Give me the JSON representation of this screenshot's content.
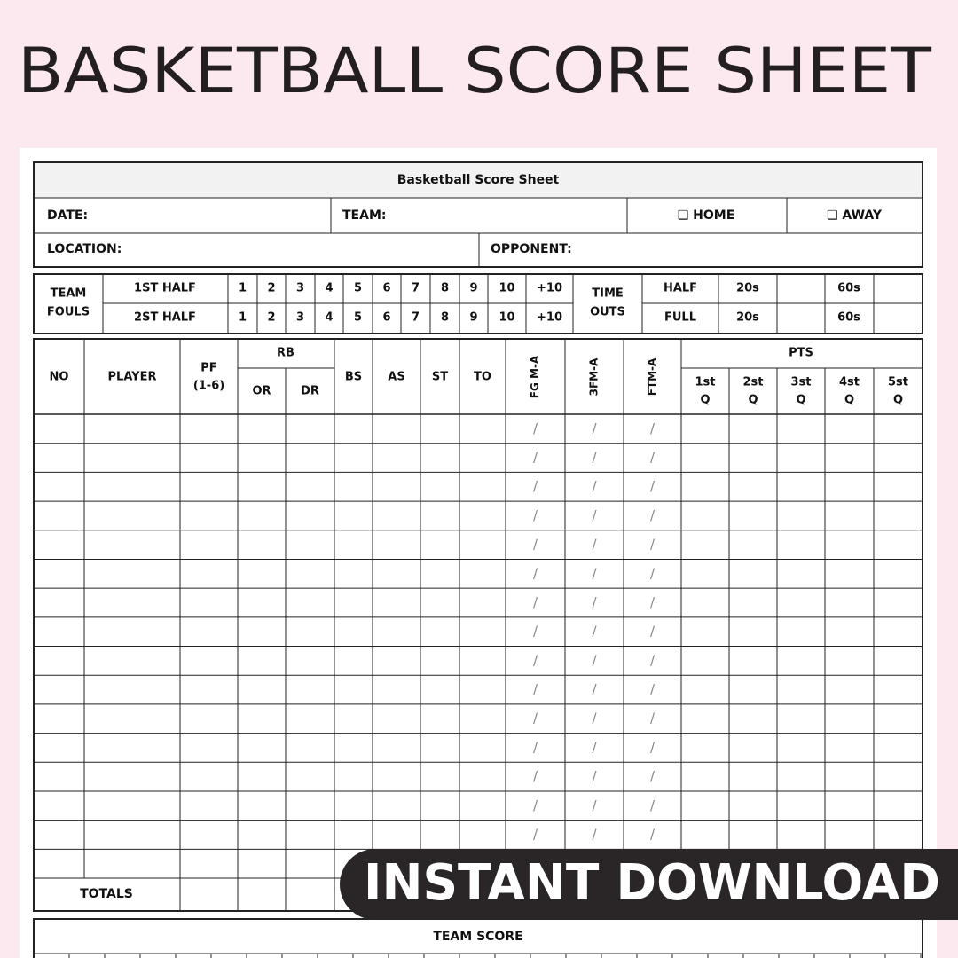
{
  "title": "BASKETBALL SCORE SHEET",
  "info": {
    "heading": "Basketball Score Sheet",
    "date": "DATE:",
    "team": "TEAM:",
    "home": "❑ HOME",
    "away": "❑ AWAY",
    "location": "LOCATION:",
    "opponent": "OPPONENT:"
  },
  "fouls": {
    "label": [
      "TEAM",
      "FOULS"
    ],
    "rows": [
      {
        "half": "1ST HALF",
        "marks": [
          "1",
          "2",
          "3",
          "4",
          "5",
          "6",
          "7",
          "8",
          "9",
          "10",
          "+10"
        ]
      },
      {
        "half": "2ST HALF",
        "marks": [
          "1",
          "2",
          "3",
          "4",
          "5",
          "6",
          "7",
          "8",
          "9",
          "10",
          "+10"
        ]
      }
    ]
  },
  "timeouts": {
    "label": [
      "TIME",
      "OUTS"
    ],
    "rows": [
      {
        "period": "HALF",
        "short": "20s",
        "long": "60s"
      },
      {
        "period": "FULL",
        "short": "20s",
        "long": "60s"
      }
    ]
  },
  "stats": {
    "columns": [
      [
        "NO"
      ],
      [
        "PLAYER"
      ],
      [
        "PF",
        "(1-6)"
      ],
      [
        "OR"
      ],
      [
        "DR"
      ],
      [
        "BS"
      ],
      [
        "AS"
      ],
      [
        "ST"
      ],
      [
        "TO"
      ],
      [
        "FG M-A"
      ],
      [
        "3FM-A"
      ],
      [
        "FTM-A"
      ],
      [
        "1st",
        "Q"
      ],
      [
        "2st",
        "Q"
      ],
      [
        "3st",
        "Q"
      ],
      [
        "4st",
        "Q"
      ],
      [
        "5st",
        "Q"
      ]
    ],
    "groups": {
      "rb": "RB",
      "pts": "PTS"
    },
    "split_mark": "/",
    "totals": "TOTALS"
  },
  "team_score": "TEAM SCORE",
  "banner": "INSTANT DOWNLOAD"
}
